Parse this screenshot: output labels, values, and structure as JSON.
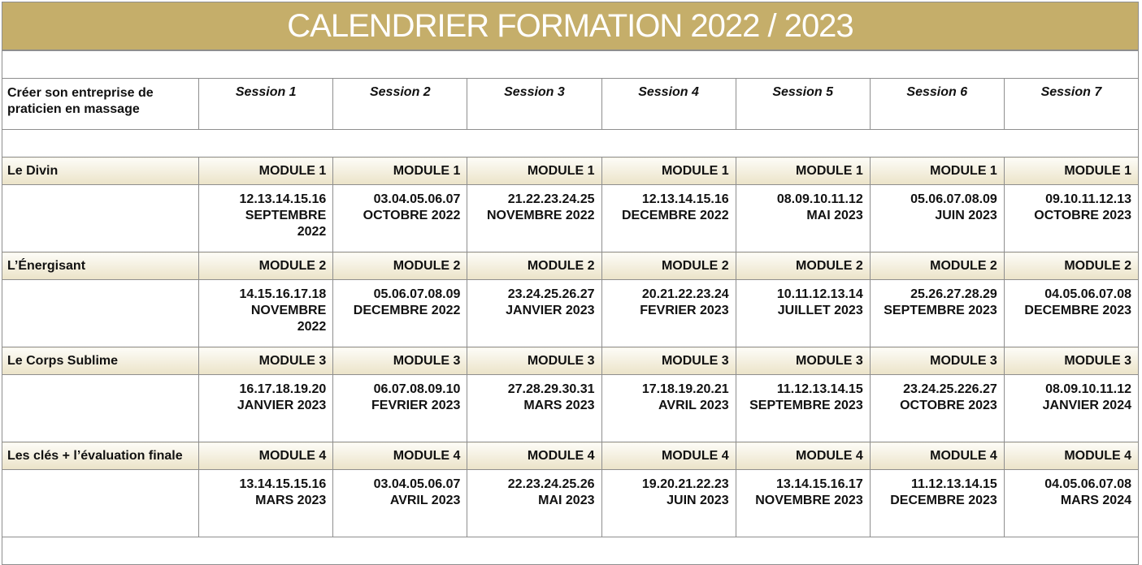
{
  "title": "CALENDRIER FORMATION 2022 / 2023",
  "header_label": "Créer son entreprise de praticien en massage",
  "sessions": [
    "Session 1",
    "Session 2",
    "Session 3",
    "Session 4",
    "Session 5",
    "Session 6",
    "Session 7"
  ],
  "modules": [
    {
      "name": "Le Divin",
      "label": "MODULE 1",
      "dates": [
        "12.13.14.15.16\nSEPTEMBRE\n2022",
        "03.04.05.06.07\nOCTOBRE 2022",
        "21.22.23.24.25\nNOVEMBRE 2022",
        "12.13.14.15.16\nDECEMBRE 2022",
        "08.09.10.11.12\nMAI 2023",
        "05.06.07.08.09\nJUIN 2023",
        "09.10.11.12.13\nOCTOBRE 2023"
      ]
    },
    {
      "name": "L’Énergisant",
      "label": "MODULE 2",
      "dates": [
        "14.15.16.17.18\nNOVEMBRE\n2022",
        "05.06.07.08.09\nDECEMBRE 2022",
        "23.24.25.26.27\nJANVIER 2023",
        "20.21.22.23.24\nFEVRIER 2023",
        "10.11.12.13.14\nJUILLET 2023",
        "25.26.27.28.29\nSEPTEMBRE 2023",
        "04.05.06.07.08\nDECEMBRE 2023"
      ]
    },
    {
      "name": "Le Corps Sublime",
      "label": "MODULE  3",
      "dates": [
        "16.17.18.19.20\nJANVIER 2023",
        "06.07.08.09.10\nFEVRIER 2023",
        "27.28.29.30.31\nMARS 2023",
        "17.18.19.20.21\nAVRIL 2023",
        "11.12.13.14.15\nSEPTEMBRE 2023",
        "23.24.25.226.27\nOCTOBRE 2023",
        "08.09.10.11.12\nJANVIER 2024"
      ]
    },
    {
      "name": "Les clés + l’évaluation finale",
      "label": "MODULE 4",
      "dates": [
        "13.14.15.15.16\nMARS 2023",
        "03.04.05.06.07\nAVRIL 2023",
        "22.23.24.25.26\nMAI 2023",
        "19.20.21.22.23\nJUIN 2023",
        "13.14.15.16.17\nNOVEMBRE 2023",
        "11.12.13.14.15\nDECEMBRE 2023",
        "04.05.06.07.08\nMARS 2024"
      ]
    }
  ]
}
